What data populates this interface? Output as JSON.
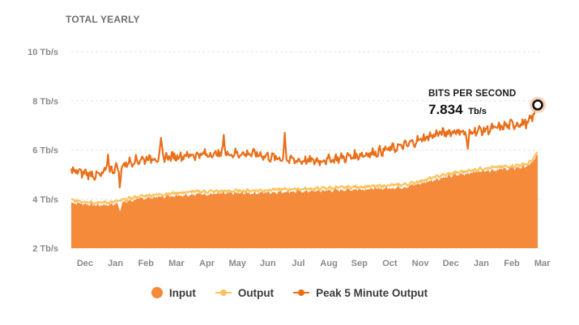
{
  "chart_data": {
    "type": "area",
    "title": "TOTAL YEARLY",
    "y_unit": "Tb/s",
    "ylim": [
      2,
      10
    ],
    "y_ticks": [
      "2 Tb/s",
      "4 Tb/s",
      "6 Tb/s",
      "8 Tb/s",
      "10 Tb/s"
    ],
    "y_tick_values": [
      2,
      4,
      6,
      8,
      10
    ],
    "x_ticks": [
      "Dec",
      "Jan",
      "Feb",
      "Mar",
      "Apr",
      "May",
      "Jun",
      "Jul",
      "Aug",
      "Sep",
      "Oct",
      "Nov",
      "Dec",
      "Jan",
      "Feb",
      "Mar"
    ],
    "grid": true,
    "legend_position": "bottom-center",
    "x_knots": [
      0,
      0.5,
      0.9,
      1.5,
      2.0,
      2.5,
      3.0,
      3.5,
      4.0,
      5.0,
      6.0,
      7.0,
      8.0,
      9.0,
      10.0,
      11.0,
      11.5,
      12.0,
      12.5,
      13.0,
      13.5,
      14.0,
      14.5,
      15.0,
      15.15,
      15.3
    ],
    "series": [
      {
        "name": "Input",
        "color": "#f58a3a",
        "style": "area",
        "values": [
          3.85,
          3.8,
          3.75,
          3.8,
          3.95,
          4.05,
          4.1,
          4.15,
          4.2,
          4.22,
          4.25,
          4.3,
          4.32,
          4.38,
          4.42,
          4.5,
          4.65,
          4.82,
          4.95,
          5.05,
          5.15,
          5.2,
          5.25,
          5.35,
          5.55,
          5.8
        ]
      },
      {
        "name": "Output",
        "color": "#fbc35e",
        "style": "line",
        "values": [
          3.95,
          3.9,
          3.85,
          3.9,
          4.05,
          4.15,
          4.2,
          4.25,
          4.3,
          4.32,
          4.35,
          4.4,
          4.42,
          4.48,
          4.52,
          4.6,
          4.75,
          4.92,
          5.05,
          5.15,
          5.25,
          5.3,
          5.35,
          5.45,
          5.65,
          5.9
        ]
      },
      {
        "name": "Peak 5 Minute Output",
        "color": "#e96f1b",
        "style": "line",
        "values": [
          5.15,
          5.05,
          4.95,
          5.3,
          5.55,
          5.65,
          5.7,
          5.75,
          5.8,
          5.85,
          5.85,
          5.6,
          5.55,
          5.7,
          5.9,
          6.2,
          6.45,
          6.65,
          6.75,
          6.75,
          6.8,
          6.9,
          7.05,
          7.1,
          7.4,
          7.834
        ]
      }
    ],
    "spikes": [
      {
        "series": 2,
        "x": 1.2,
        "value": 5.9
      },
      {
        "series": 2,
        "x": 2.95,
        "value": 6.35
      },
      {
        "series": 2,
        "x": 5.0,
        "value": 6.6
      },
      {
        "series": 2,
        "x": 7.0,
        "value": 6.75
      },
      {
        "series": 2,
        "x": 13.0,
        "value": 5.8
      },
      {
        "series": 2,
        "x": 1.6,
        "value": 4.45
      },
      {
        "series": 0,
        "x": 1.6,
        "value": 3.5
      }
    ],
    "tooltip": {
      "title": "BITS PER SECOND",
      "value": "7.834",
      "unit": "Tb/s",
      "x": 15.3,
      "y": 7.834
    }
  }
}
